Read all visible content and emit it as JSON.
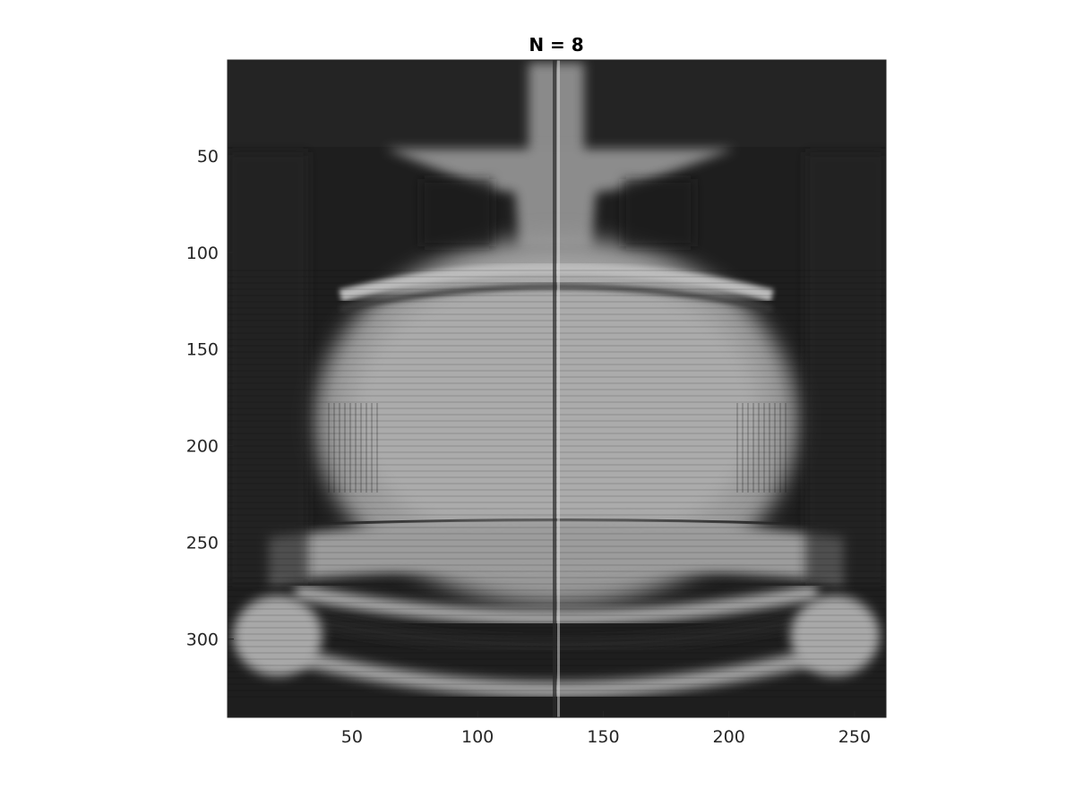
{
  "figure": {
    "title": "N = 8",
    "colormap": "gray",
    "image_size": {
      "columns": 262,
      "rows": 340
    },
    "x_ticks": [
      "50",
      "100",
      "150",
      "200",
      "250"
    ],
    "y_ticks": [
      "50",
      "100",
      "150",
      "200",
      "250",
      "300"
    ],
    "colors": {
      "background": "#ffffff",
      "axes_frame": "#262626",
      "image_dark": "#1c1c1c",
      "image_light": "#c8c8c8"
    }
  }
}
